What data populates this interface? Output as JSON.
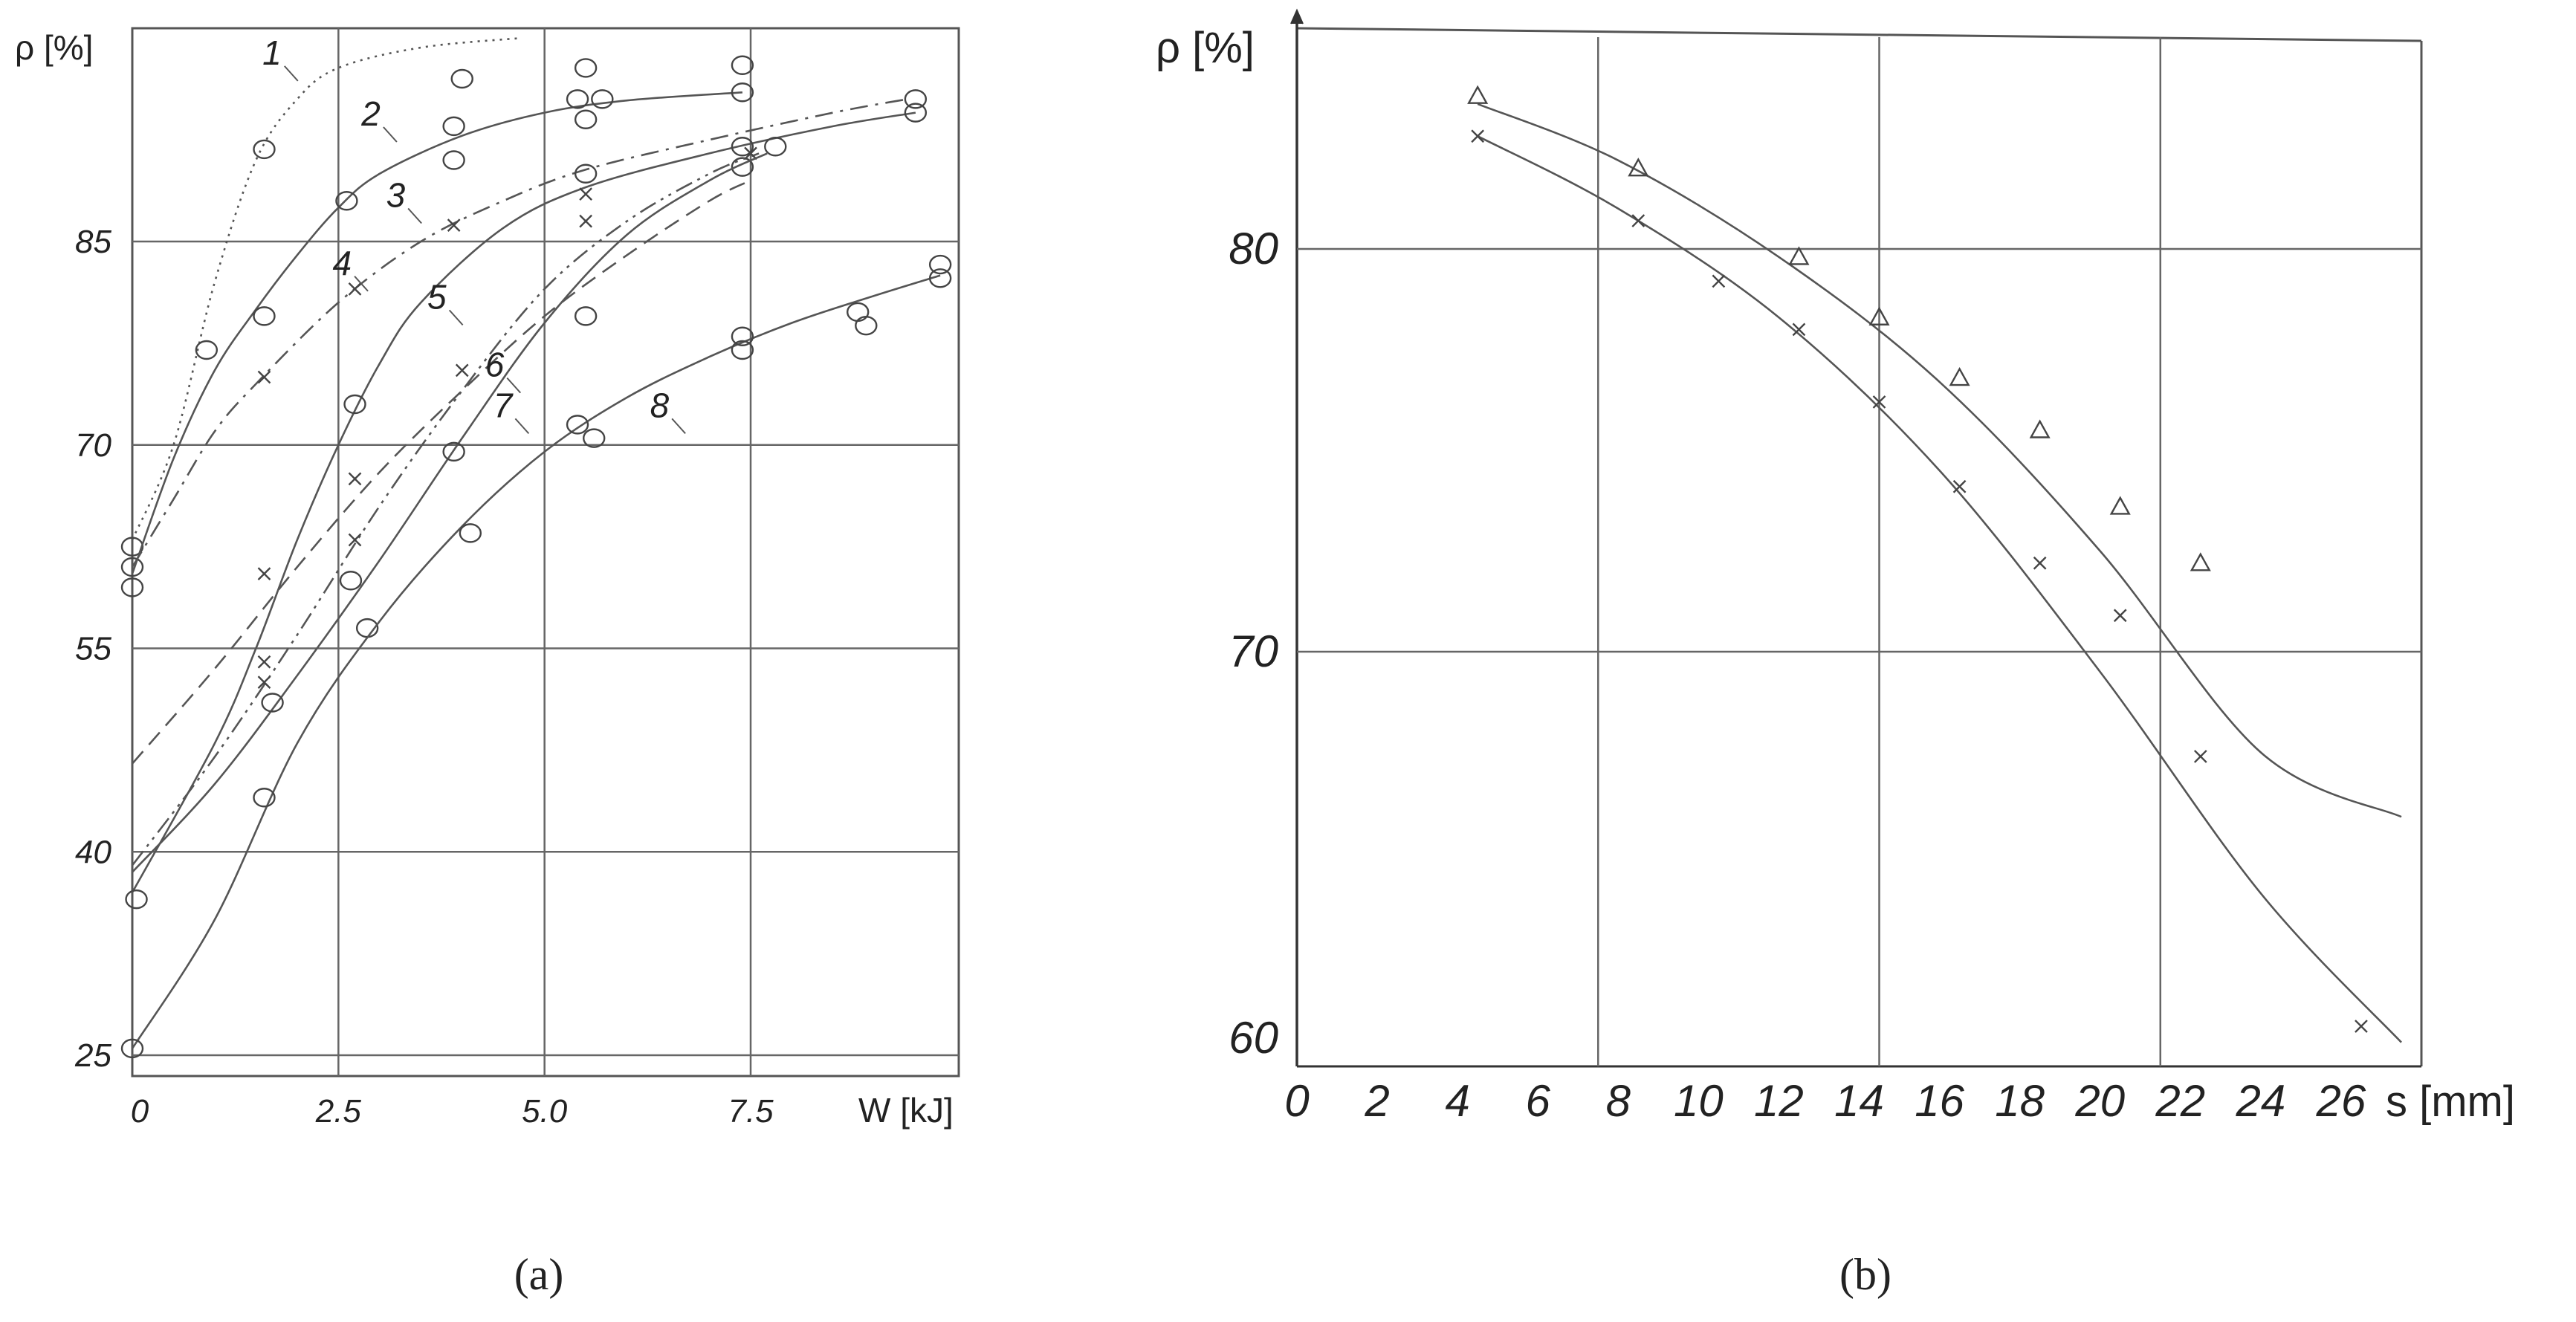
{
  "figure": {
    "panel_a_caption": "(a)",
    "panel_b_caption": "(b)"
  },
  "chart_data": [
    {
      "panel": "a",
      "type": "line",
      "title": "",
      "ylabel": "ρ [%]",
      "xlabel": "W [kJ]",
      "xlim": [
        0,
        9.8
      ],
      "ylim": [
        25,
        100
      ],
      "x_ticks": [
        {
          "value": 0,
          "label": "0"
        },
        {
          "value": 2.5,
          "label": "2.5"
        },
        {
          "value": 5.0,
          "label": "5.0"
        },
        {
          "value": 7.5,
          "label": "7.5"
        }
      ],
      "y_ticks": [
        {
          "value": 25,
          "label": "25"
        },
        {
          "value": 40,
          "label": "40"
        },
        {
          "value": 55,
          "label": "55"
        },
        {
          "value": 70,
          "label": "70"
        },
        {
          "value": 85,
          "label": "85"
        }
      ],
      "grid": true,
      "series": [
        {
          "name": "1",
          "style": "dotted",
          "marker": "circle",
          "curve": [
            [
              0,
              63
            ],
            [
              0.5,
              70
            ],
            [
              1,
              82
            ],
            [
              1.5,
              91
            ],
            [
              2,
              95.5
            ],
            [
              2.5,
              97.8
            ],
            [
              3.5,
              99.3
            ],
            [
              4.7,
              100
            ]
          ],
          "points": [
            [
              0,
              62.5
            ],
            [
              0,
              61
            ],
            [
              0.9,
              77
            ],
            [
              1.6,
              91.8
            ]
          ],
          "label_at": [
            1.9,
            97.5
          ]
        },
        {
          "name": "2",
          "style": "solid",
          "marker": "circle",
          "curve": [
            [
              0,
              60.5
            ],
            [
              0.5,
              69
            ],
            [
              1,
              75.5
            ],
            [
              1.5,
              80
            ],
            [
              2,
              84
            ],
            [
              2.5,
              87.5
            ],
            [
              3,
              90
            ],
            [
              4,
              92.8
            ],
            [
              5,
              94.5
            ],
            [
              6,
              95.4
            ],
            [
              7.4,
              96
            ]
          ],
          "points": [
            [
              0,
              59.5
            ],
            [
              1.6,
              79.5
            ],
            [
              2.6,
              88
            ],
            [
              3.9,
              93.5
            ],
            [
              3.9,
              91
            ],
            [
              4.0,
              97
            ],
            [
              5.4,
              95.5
            ],
            [
              5.5,
              97.8
            ],
            [
              5.5,
              94
            ],
            [
              5.7,
              95.5
            ],
            [
              7.4,
              98
            ],
            [
              7.4,
              96
            ]
          ],
          "label_at": [
            3.1,
            93
          ]
        },
        {
          "name": "3",
          "style": "dash-dot",
          "marker": "x",
          "curve": [
            [
              0,
              61
            ],
            [
              0.5,
              66
            ],
            [
              1,
              71
            ],
            [
              1.5,
              74.5
            ],
            [
              2.5,
              80.5
            ],
            [
              3.5,
              85
            ],
            [
              4.5,
              88
            ],
            [
              5.5,
              90.3
            ],
            [
              7,
              92.5
            ],
            [
              8.5,
              94.5
            ],
            [
              9.4,
              95.5
            ]
          ],
          "points": [
            [
              1.6,
              75
            ],
            [
              2.7,
              81.5
            ],
            [
              3.9,
              86.2
            ]
          ],
          "label_at": [
            3.4,
            87
          ]
        },
        {
          "name": "4",
          "style": "solid",
          "marker": "circle",
          "curve": [
            [
              0,
              37
            ],
            [
              1,
              48
            ],
            [
              1.5,
              55
            ],
            [
              2,
              63
            ],
            [
              2.5,
              70
            ],
            [
              3,
              76
            ],
            [
              3.5,
              80.5
            ],
            [
              4.5,
              86
            ],
            [
              5.5,
              89
            ],
            [
              7,
              91.5
            ],
            [
              8.5,
              93.5
            ],
            [
              9.5,
              94.5
            ]
          ],
          "points": [
            [
              0.05,
              36.5
            ],
            [
              2.7,
              73
            ],
            [
              5.5,
              90
            ],
            [
              7.4,
              90.5
            ],
            [
              7.4,
              92
            ],
            [
              9.5,
              95.5
            ],
            [
              9.5,
              94.5
            ]
          ],
          "label_at": [
            2.75,
            82
          ]
        },
        {
          "name": "5",
          "style": "dashed",
          "marker": "x",
          "curve": [
            [
              0,
              46.5
            ],
            [
              1,
              53.5
            ],
            [
              2,
              61
            ],
            [
              3,
              68
            ],
            [
              4,
              74
            ],
            [
              5,
              79.5
            ],
            [
              6,
              84
            ],
            [
              7,
              88
            ],
            [
              7.5,
              89.5
            ]
          ],
          "points": [
            [
              1.6,
              60.5
            ],
            [
              4.0,
              75.5
            ],
            [
              5.5,
              86.5
            ]
          ],
          "label_at": [
            3.9,
            79.5
          ]
        },
        {
          "name": "6",
          "style": "dash-dot-dot",
          "marker": "x",
          "curve": [
            [
              0,
              39
            ],
            [
              1,
              47
            ],
            [
              2,
              56
            ],
            [
              3,
              65.5
            ],
            [
              4,
              74
            ],
            [
              5,
              81.5
            ],
            [
              6,
              86.5
            ],
            [
              7,
              90
            ],
            [
              7.6,
              91.5
            ]
          ],
          "points": [
            [
              1.6,
              54
            ],
            [
              1.6,
              52.5
            ],
            [
              2.7,
              67.5
            ],
            [
              2.7,
              63
            ],
            [
              5.5,
              88.5
            ],
            [
              7.5,
              91.5
            ]
          ],
          "label_at": [
            4.6,
            74.5
          ]
        },
        {
          "name": "7",
          "style": "solid",
          "marker": "circle",
          "curve": [
            [
              0,
              38.5
            ],
            [
              1,
              45
            ],
            [
              2,
              53
            ],
            [
              3,
              61.5
            ],
            [
              4,
              70.5
            ],
            [
              5,
              79
            ],
            [
              6,
              85.5
            ],
            [
              7,
              89.5
            ],
            [
              7.7,
              91.5
            ]
          ],
          "points": [
            [
              1.7,
              51
            ],
            [
              2.65,
              60
            ],
            [
              2.85,
              56.5
            ],
            [
              3.9,
              69.5
            ],
            [
              5.5,
              79.5
            ],
            [
              7.8,
              92
            ]
          ],
          "label_at": [
            4.7,
            71.5
          ]
        },
        {
          "name": "8",
          "style": "solid",
          "marker": "circle",
          "curve": [
            [
              0,
              25.5
            ],
            [
              1,
              35
            ],
            [
              2,
              48
            ],
            [
              3,
              57
            ],
            [
              4,
              64
            ],
            [
              5,
              69.5
            ],
            [
              6,
              73.5
            ],
            [
              7,
              76.5
            ],
            [
              8,
              79
            ],
            [
              9,
              81
            ],
            [
              9.8,
              82.5
            ]
          ],
          "points": [
            [
              0,
              25.5
            ],
            [
              1.6,
              44
            ],
            [
              4.1,
              63.5
            ],
            [
              5.4,
              71.5
            ],
            [
              5.6,
              70.5
            ],
            [
              7.4,
              78
            ],
            [
              7.4,
              77
            ],
            [
              8.8,
              79.8
            ],
            [
              8.9,
              78.8
            ],
            [
              9.8,
              83.3
            ],
            [
              9.8,
              82.3
            ]
          ],
          "label_at": [
            6.6,
            71.5
          ]
        }
      ]
    },
    {
      "panel": "b",
      "type": "line",
      "title": "",
      "ylabel": "ρ [%]",
      "xlabel": "s [mm]",
      "xlim": [
        0,
        28
      ],
      "ylim": [
        59.8,
        85.2
      ],
      "x_ticks": [
        {
          "value": 0,
          "label": "0"
        },
        {
          "value": 2,
          "label": "2"
        },
        {
          "value": 4,
          "label": "4"
        },
        {
          "value": 6,
          "label": "6"
        },
        {
          "value": 8,
          "label": "8"
        },
        {
          "value": 10,
          "label": "10"
        },
        {
          "value": 12,
          "label": "12"
        },
        {
          "value": 14,
          "label": "14"
        },
        {
          "value": 16,
          "label": "16"
        },
        {
          "value": 18,
          "label": "18"
        },
        {
          "value": 20,
          "label": "20"
        },
        {
          "value": 22,
          "label": "22"
        },
        {
          "value": 24,
          "label": "24"
        },
        {
          "value": 26,
          "label": "26"
        }
      ],
      "y_ticks": [
        {
          "value": 60,
          "label": "60"
        },
        {
          "value": 70,
          "label": "70"
        },
        {
          "value": 80,
          "label": "80"
        }
      ],
      "x_gridlines": [
        7.5,
        14.5,
        21.5
      ],
      "grid": true,
      "series": [
        {
          "marker": "triangle",
          "curve": [
            [
              4.5,
              83.6
            ],
            [
              8,
              82.2
            ],
            [
              12,
              79.8
            ],
            [
              16,
              76.7
            ],
            [
              20,
              72.5
            ],
            [
              24,
              67.5
            ],
            [
              27.5,
              65.9
            ]
          ],
          "points": [
            [
              4.5,
              83.8
            ],
            [
              8.5,
              82
            ],
            [
              12.5,
              79.8
            ],
            [
              14.5,
              78.3
            ],
            [
              16.5,
              76.8
            ],
            [
              18.5,
              75.5
            ],
            [
              20.5,
              73.6
            ],
            [
              22.5,
              72.2
            ]
          ]
        },
        {
          "marker": "x",
          "curve": [
            [
              4.5,
              82.8
            ],
            [
              8,
              81
            ],
            [
              12,
              78.3
            ],
            [
              16,
              74.5
            ],
            [
              20,
              69.5
            ],
            [
              24,
              64
            ],
            [
              27.5,
              60.3
            ]
          ],
          "points": [
            [
              4.5,
              82.8
            ],
            [
              8.5,
              80.7
            ],
            [
              10.5,
              79.2
            ],
            [
              12.5,
              78
            ],
            [
              14.5,
              76.2
            ],
            [
              16.5,
              74.1
            ],
            [
              18.5,
              72.2
            ],
            [
              20.5,
              70.9
            ],
            [
              22.5,
              67.4
            ],
            [
              26.5,
              60.7
            ]
          ]
        }
      ]
    }
  ]
}
